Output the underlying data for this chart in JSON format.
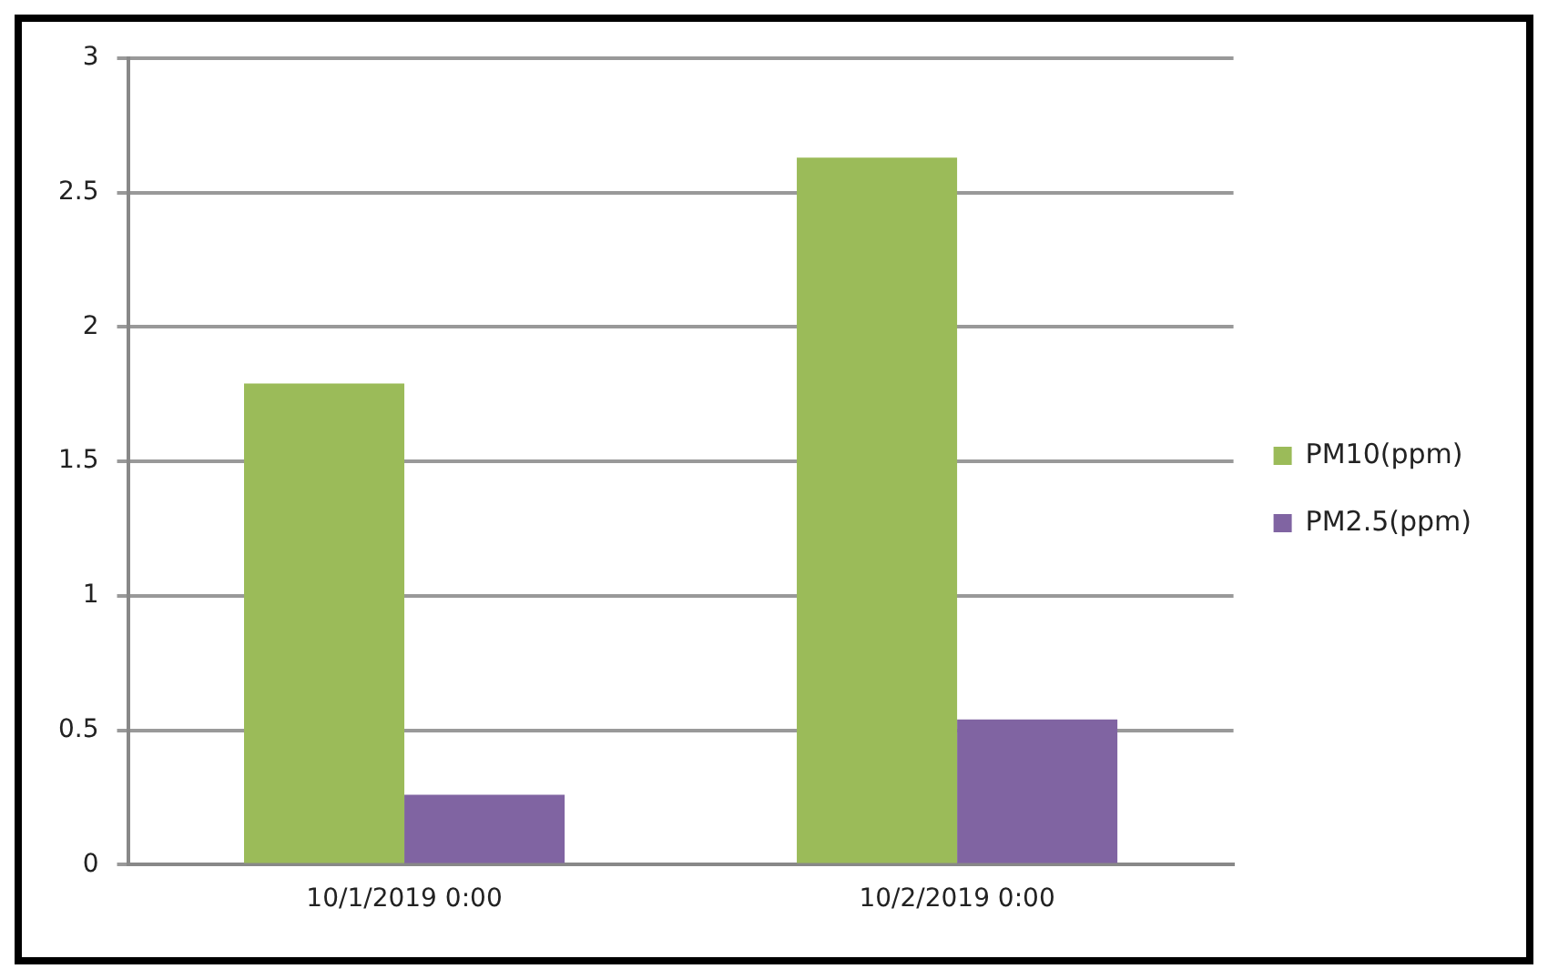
{
  "chart_data": {
    "type": "bar",
    "categories": [
      "10/1/2019 0:00",
      "10/2/2019 0:00"
    ],
    "series": [
      {
        "name": "PM10(ppm)",
        "color": "#9bbb59",
        "values": [
          1.79,
          2.63
        ]
      },
      {
        "name": "PM2.5(ppm)",
        "color": "#8064a2",
        "values": [
          0.26,
          0.54
        ]
      }
    ],
    "ylim": [
      0,
      3
    ],
    "yticks": [
      0,
      0.5,
      1,
      1.5,
      2,
      2.5,
      3
    ],
    "grid": "y",
    "legend": "right"
  }
}
